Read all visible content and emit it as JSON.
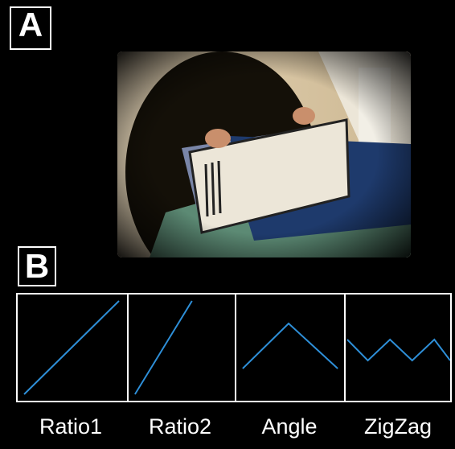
{
  "panels": {
    "a_label": "A",
    "b_label": "B"
  },
  "conditions": [
    {
      "id": "ratio1",
      "label": "Ratio1"
    },
    {
      "id": "ratio2",
      "label": "Ratio2"
    },
    {
      "id": "angle",
      "label": "Angle"
    },
    {
      "id": "zigzag",
      "label": "ZigZag"
    }
  ],
  "colors": {
    "trace": "#2e8fd8",
    "background": "#000000",
    "frame": "#ffffff"
  }
}
